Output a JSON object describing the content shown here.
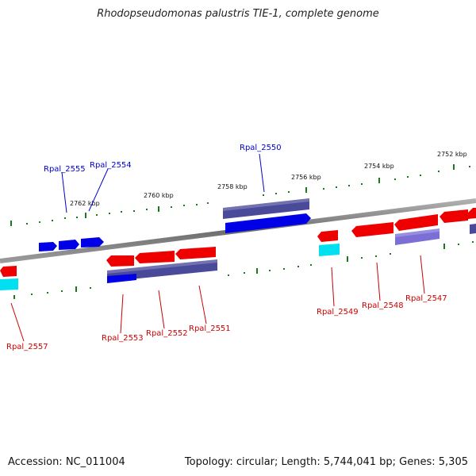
{
  "title": "Rhodopseudomonas palustris TIE-1, complete genome",
  "footer": {
    "accession": "Accession: NC_011004",
    "summary": "Topology: circular; Length: 5,744,041 bp; Genes: 5,305"
  },
  "colors": {
    "backbone": "#7f7f7f",
    "tick": "#1a7a1a",
    "forward_label": "#0000cc",
    "reverse_label": "#cc0000",
    "red": "#ee0000",
    "blue": "#0000ee",
    "slate": "#4a4a9a",
    "lavender": "#7b6fd6",
    "cyan": "#00e0f0"
  },
  "kbp_labels": [
    "2762 kbp",
    "2760 kbp",
    "2758 kbp",
    "2756 kbp",
    "2754 kbp",
    "2752 kbp"
  ],
  "gene_labels": {
    "forward": [
      "Rpal_2555",
      "Rpal_2554",
      "Rpal_2550"
    ],
    "reverse": [
      "Rpal_2557",
      "Rpal_2553",
      "Rpal_2552",
      "Rpal_2551",
      "Rpal_2549",
      "Rpal_2548",
      "Rpal_2547"
    ]
  }
}
